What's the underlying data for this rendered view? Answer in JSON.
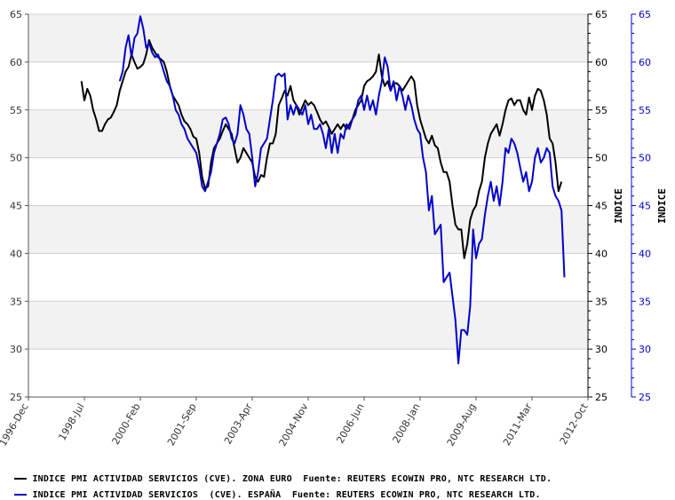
{
  "chart_data": {
    "type": "line",
    "ylim": [
      25,
      65
    ],
    "ytick_values": [
      25,
      30,
      35,
      40,
      45,
      50,
      55,
      60,
      65
    ],
    "xtick_labels": [
      "1996-Dec",
      "1998-Jul",
      "2000-Feb",
      "2001-Sep",
      "2003-Apr",
      "2004-Nov",
      "2006-Jun",
      "2008-Jan",
      "2009-Aug",
      "2011-Mar",
      "2012-Oct"
    ],
    "xlim": [
      0,
      190
    ],
    "x_unit": "months since 1996-Dec",
    "right_axis_label_1": "INDICE",
    "right_axis_label_2": "INDICE",
    "grid": "horizontal alternating bands",
    "series": [
      {
        "name": "INDICE PMI ACTIVIDAD SERVICIOS (CVE). ZONA EURO  Fuente: REUTERS ECOWIN PRO, NTC RESEARCH LTD.",
        "color": "#000000",
        "points": [
          [
            18,
            58.0
          ],
          [
            19,
            56.0
          ],
          [
            20,
            57.2
          ],
          [
            21,
            56.5
          ],
          [
            22,
            55.0
          ],
          [
            23,
            54.0
          ],
          [
            24,
            52.8
          ],
          [
            25,
            52.8
          ],
          [
            26,
            53.5
          ],
          [
            27,
            54.0
          ],
          [
            28,
            54.2
          ],
          [
            29,
            54.8
          ],
          [
            30,
            55.5
          ],
          [
            31,
            57.0
          ],
          [
            32,
            58.0
          ],
          [
            33,
            59.0
          ],
          [
            34,
            59.5
          ],
          [
            35,
            60.8
          ],
          [
            36,
            60.0
          ],
          [
            37,
            59.3
          ],
          [
            38,
            59.5
          ],
          [
            39,
            59.8
          ],
          [
            40,
            60.8
          ],
          [
            41,
            62.3
          ],
          [
            42,
            61.5
          ],
          [
            43,
            61.0
          ],
          [
            44,
            60.5
          ],
          [
            45,
            60.3
          ],
          [
            46,
            60.0
          ],
          [
            47,
            59.0
          ],
          [
            48,
            57.5
          ],
          [
            49,
            56.5
          ],
          [
            50,
            56.0
          ],
          [
            51,
            55.5
          ],
          [
            52,
            54.5
          ],
          [
            53,
            53.8
          ],
          [
            54,
            53.5
          ],
          [
            55,
            53.0
          ],
          [
            56,
            52.2
          ],
          [
            57,
            52.0
          ],
          [
            58,
            50.5
          ],
          [
            59,
            48.0
          ],
          [
            60,
            46.8
          ],
          [
            61,
            47.0
          ],
          [
            62,
            49.5
          ],
          [
            63,
            51.0
          ],
          [
            64,
            51.5
          ],
          [
            65,
            52.0
          ],
          [
            66,
            52.8
          ],
          [
            67,
            53.5
          ],
          [
            68,
            53.0
          ],
          [
            69,
            52.5
          ],
          [
            70,
            51.0
          ],
          [
            71,
            49.5
          ],
          [
            72,
            50.0
          ],
          [
            73,
            51.0
          ],
          [
            74,
            50.5
          ],
          [
            75,
            50.0
          ],
          [
            76,
            49.5
          ],
          [
            77,
            48.0
          ],
          [
            78,
            47.5
          ],
          [
            79,
            48.2
          ],
          [
            80,
            48.0
          ],
          [
            81,
            50.0
          ],
          [
            82,
            51.5
          ],
          [
            83,
            51.5
          ],
          [
            84,
            52.5
          ],
          [
            85,
            55.5
          ],
          [
            86,
            56.2
          ],
          [
            87,
            57.0
          ],
          [
            88,
            56.5
          ],
          [
            89,
            57.5
          ],
          [
            90,
            56.0
          ],
          [
            91,
            55.5
          ],
          [
            92,
            54.5
          ],
          [
            93,
            55.3
          ],
          [
            94,
            56.0
          ],
          [
            95,
            55.5
          ],
          [
            96,
            55.8
          ],
          [
            97,
            55.5
          ],
          [
            98,
            54.8
          ],
          [
            99,
            54.0
          ],
          [
            100,
            53.5
          ],
          [
            101,
            53.8
          ],
          [
            102,
            53.2
          ],
          [
            103,
            52.5
          ],
          [
            104,
            53.0
          ],
          [
            105,
            53.5
          ],
          [
            106,
            53.0
          ],
          [
            107,
            53.5
          ],
          [
            108,
            53.0
          ],
          [
            109,
            53.5
          ],
          [
            110,
            54.0
          ],
          [
            111,
            55.0
          ],
          [
            112,
            55.5
          ],
          [
            113,
            56.0
          ],
          [
            114,
            57.5
          ],
          [
            115,
            58.0
          ],
          [
            116,
            58.2
          ],
          [
            117,
            58.5
          ],
          [
            118,
            59.0
          ],
          [
            119,
            60.8
          ],
          [
            120,
            58.5
          ],
          [
            121,
            57.5
          ],
          [
            122,
            58.0
          ],
          [
            123,
            57.0
          ],
          [
            124,
            57.8
          ],
          [
            125,
            57.8
          ],
          [
            126,
            57.5
          ],
          [
            127,
            57.0
          ],
          [
            128,
            57.5
          ],
          [
            129,
            58.0
          ],
          [
            130,
            58.5
          ],
          [
            131,
            58.0
          ],
          [
            132,
            55.5
          ],
          [
            133,
            54.0
          ],
          [
            134,
            53.0
          ],
          [
            135,
            52.0
          ],
          [
            136,
            51.5
          ],
          [
            137,
            52.3
          ],
          [
            138,
            51.3
          ],
          [
            139,
            51.0
          ],
          [
            140,
            49.5
          ],
          [
            141,
            48.5
          ],
          [
            142,
            48.5
          ],
          [
            143,
            47.5
          ],
          [
            144,
            45.0
          ],
          [
            145,
            43.0
          ],
          [
            146,
            42.5
          ],
          [
            147,
            42.5
          ],
          [
            148,
            39.5
          ],
          [
            149,
            41.0
          ],
          [
            150,
            43.5
          ],
          [
            151,
            44.5
          ],
          [
            152,
            45.0
          ],
          [
            153,
            46.5
          ],
          [
            154,
            47.5
          ],
          [
            155,
            50.0
          ],
          [
            156,
            51.5
          ],
          [
            157,
            52.5
          ],
          [
            158,
            53.0
          ],
          [
            159,
            53.5
          ],
          [
            160,
            52.3
          ],
          [
            161,
            53.5
          ],
          [
            162,
            55.0
          ],
          [
            163,
            56.0
          ],
          [
            164,
            56.2
          ],
          [
            165,
            55.5
          ],
          [
            166,
            56.0
          ],
          [
            167,
            56.0
          ],
          [
            168,
            55.0
          ],
          [
            169,
            54.5
          ],
          [
            170,
            56.3
          ],
          [
            171,
            55.0
          ],
          [
            172,
            56.5
          ],
          [
            173,
            57.2
          ],
          [
            174,
            57.0
          ],
          [
            175,
            56.0
          ],
          [
            176,
            54.5
          ],
          [
            177,
            52.0
          ],
          [
            178,
            51.5
          ],
          [
            179,
            49.5
          ],
          [
            180,
            46.5
          ],
          [
            181,
            47.5
          ]
        ]
      },
      {
        "name": "INDICE PMI ACTIVIDAD SERVICIOS  (CVE). ESPAÑA  Fuente: REUTERS ECOWIN PRO, NTC RESEARCH LTD.",
        "color": "#0000cc",
        "points": [
          [
            31,
            58.0
          ],
          [
            32,
            59.0
          ],
          [
            33,
            61.5
          ],
          [
            34,
            62.8
          ],
          [
            35,
            60.5
          ],
          [
            36,
            62.5
          ],
          [
            37,
            63.0
          ],
          [
            38,
            64.8
          ],
          [
            39,
            63.5
          ],
          [
            40,
            61.5
          ],
          [
            41,
            62.0
          ],
          [
            42,
            61.0
          ],
          [
            43,
            60.5
          ],
          [
            44,
            60.8
          ],
          [
            45,
            60.0
          ],
          [
            46,
            59.0
          ],
          [
            47,
            58.0
          ],
          [
            48,
            57.5
          ],
          [
            49,
            56.5
          ],
          [
            50,
            55.0
          ],
          [
            51,
            54.5
          ],
          [
            52,
            53.5
          ],
          [
            53,
            53.0
          ],
          [
            54,
            52.0
          ],
          [
            55,
            51.5
          ],
          [
            56,
            51.0
          ],
          [
            57,
            50.5
          ],
          [
            58,
            49.0
          ],
          [
            59,
            47.0
          ],
          [
            60,
            46.5
          ],
          [
            61,
            47.5
          ],
          [
            62,
            48.5
          ],
          [
            63,
            50.5
          ],
          [
            64,
            51.5
          ],
          [
            65,
            52.5
          ],
          [
            66,
            54.0
          ],
          [
            67,
            54.2
          ],
          [
            68,
            53.5
          ],
          [
            69,
            52.0
          ],
          [
            70,
            51.5
          ],
          [
            71,
            52.5
          ],
          [
            72,
            55.5
          ],
          [
            73,
            54.5
          ],
          [
            74,
            53.0
          ],
          [
            75,
            52.5
          ],
          [
            76,
            50.0
          ],
          [
            77,
            47.0
          ],
          [
            78,
            48.5
          ],
          [
            79,
            51.0
          ],
          [
            80,
            51.5
          ],
          [
            81,
            52.0
          ],
          [
            82,
            54.0
          ],
          [
            83,
            56.0
          ],
          [
            84,
            58.5
          ],
          [
            85,
            58.8
          ],
          [
            86,
            58.5
          ],
          [
            87,
            58.8
          ],
          [
            88,
            54.0
          ],
          [
            89,
            55.5
          ],
          [
            90,
            54.5
          ],
          [
            91,
            55.5
          ],
          [
            92,
            55.0
          ],
          [
            93,
            54.5
          ],
          [
            94,
            55.5
          ],
          [
            95,
            53.5
          ],
          [
            96,
            54.5
          ],
          [
            97,
            53.0
          ],
          [
            98,
            53.0
          ],
          [
            99,
            53.5
          ],
          [
            100,
            52.5
          ],
          [
            101,
            51.0
          ],
          [
            102,
            53.0
          ],
          [
            103,
            50.5
          ],
          [
            104,
            52.5
          ],
          [
            105,
            50.5
          ],
          [
            106,
            52.5
          ],
          [
            107,
            52.0
          ],
          [
            108,
            53.5
          ],
          [
            109,
            53.0
          ],
          [
            110,
            54.0
          ],
          [
            111,
            54.5
          ],
          [
            112,
            56.0
          ],
          [
            113,
            56.5
          ],
          [
            114,
            55.0
          ],
          [
            115,
            56.5
          ],
          [
            116,
            55.0
          ],
          [
            117,
            56.0
          ],
          [
            118,
            54.5
          ],
          [
            119,
            56.5
          ],
          [
            120,
            58.0
          ],
          [
            121,
            60.5
          ],
          [
            122,
            59.5
          ],
          [
            123,
            57.0
          ],
          [
            124,
            58.0
          ],
          [
            125,
            56.0
          ],
          [
            126,
            57.5
          ],
          [
            127,
            56.5
          ],
          [
            128,
            55.0
          ],
          [
            129,
            56.5
          ],
          [
            130,
            55.5
          ],
          [
            131,
            54.0
          ],
          [
            132,
            53.0
          ],
          [
            133,
            52.5
          ],
          [
            134,
            50.0
          ],
          [
            135,
            48.5
          ],
          [
            136,
            44.5
          ],
          [
            137,
            46.0
          ],
          [
            138,
            42.0
          ],
          [
            139,
            42.5
          ],
          [
            140,
            43.0
          ],
          [
            141,
            37.0
          ],
          [
            142,
            37.5
          ],
          [
            143,
            38.0
          ],
          [
            144,
            35.5
          ],
          [
            145,
            33.0
          ],
          [
            146,
            28.5
          ],
          [
            147,
            32.0
          ],
          [
            148,
            32.0
          ],
          [
            149,
            31.5
          ],
          [
            150,
            34.5
          ],
          [
            151,
            42.5
          ],
          [
            152,
            39.5
          ],
          [
            153,
            41.0
          ],
          [
            154,
            41.5
          ],
          [
            155,
            44.0
          ],
          [
            156,
            46.0
          ],
          [
            157,
            47.5
          ],
          [
            158,
            45.5
          ],
          [
            159,
            47.0
          ],
          [
            160,
            45.0
          ],
          [
            161,
            47.5
          ],
          [
            162,
            51.0
          ],
          [
            163,
            50.5
          ],
          [
            164,
            52.0
          ],
          [
            165,
            51.5
          ],
          [
            166,
            50.5
          ],
          [
            167,
            49.0
          ],
          [
            168,
            47.5
          ],
          [
            169,
            48.5
          ],
          [
            170,
            46.5
          ],
          [
            171,
            47.5
          ],
          [
            172,
            50.0
          ],
          [
            173,
            51.0
          ],
          [
            174,
            49.5
          ],
          [
            175,
            50.0
          ],
          [
            176,
            51.0
          ],
          [
            177,
            50.5
          ],
          [
            178,
            47.0
          ],
          [
            179,
            46.0
          ],
          [
            180,
            45.5
          ],
          [
            181,
            44.5
          ],
          [
            182,
            37.5
          ]
        ]
      }
    ]
  },
  "legend": [
    {
      "text": "INDICE PMI ACTIVIDAD SERVICIOS (CVE). ZONA EURO  Fuente: REUTERS ECOWIN PRO, NTC RESEARCH LTD.",
      "color": "#000000"
    },
    {
      "text": "INDICE PMI ACTIVIDAD SERVICIOS  (CVE). ESPAÑA  Fuente: REUTERS ECOWIN PRO, NTC RESEARCH LTD.",
      "color": "#0000cc"
    }
  ]
}
